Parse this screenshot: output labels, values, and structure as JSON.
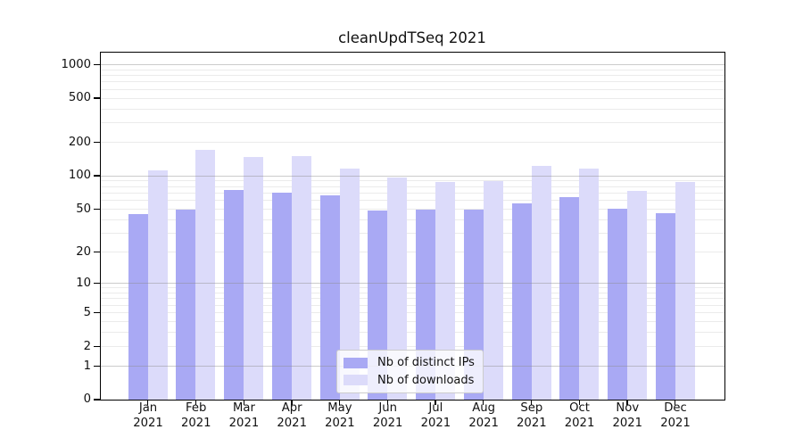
{
  "chart_data": {
    "type": "bar",
    "title": "cleanUpdTSeq 2021",
    "categories": [
      "Jan 2021",
      "Feb 2021",
      "Mar 2021",
      "Apr 2021",
      "May 2021",
      "Jun 2021",
      "Jul 2021",
      "Aug 2021",
      "Sep 2021",
      "Oct 2021",
      "Nov 2021",
      "Dec 2021"
    ],
    "months": [
      "Jan",
      "Feb",
      "Mar",
      "Apr",
      "May",
      "Jun",
      "Jul",
      "Aug",
      "Sep",
      "Oct",
      "Nov",
      "Dec"
    ],
    "year_label": "2021",
    "series": [
      {
        "name": "Nb of distinct IPs",
        "color": "#a9a9f4",
        "values": [
          45,
          49,
          74,
          71,
          66,
          48,
          49,
          49,
          56,
          64,
          50,
          46
        ]
      },
      {
        "name": "Nb of downloads",
        "color": "#dcdbfa",
        "values": [
          113,
          170,
          147,
          150,
          117,
          96,
          88,
          90,
          122,
          117,
          73,
          88
        ]
      }
    ],
    "xlabel": "",
    "ylabel": "",
    "yscale": "log1p",
    "ylim": [
      0,
      1280
    ],
    "yticks": [
      0,
      1,
      2,
      5,
      10,
      20,
      50,
      100,
      200,
      500,
      1000
    ],
    "minor_gridlines": [
      2,
      3,
      4,
      5,
      6,
      7,
      8,
      9,
      20,
      30,
      40,
      50,
      60,
      70,
      80,
      90,
      200,
      300,
      400,
      500,
      600,
      700,
      800,
      900
    ],
    "major_gridlines": [
      1,
      10,
      100,
      1000
    ],
    "grid": true,
    "legend_position": "bottom-center"
  },
  "colors": {
    "bar_distinct_ips": "#a9a9f4",
    "bar_downloads": "#dcdbfa",
    "grid_minor": "#ebebeb",
    "grid_major": "#8c8c8c",
    "axis": "#000000",
    "background": "#ffffff",
    "text": "#111111"
  }
}
